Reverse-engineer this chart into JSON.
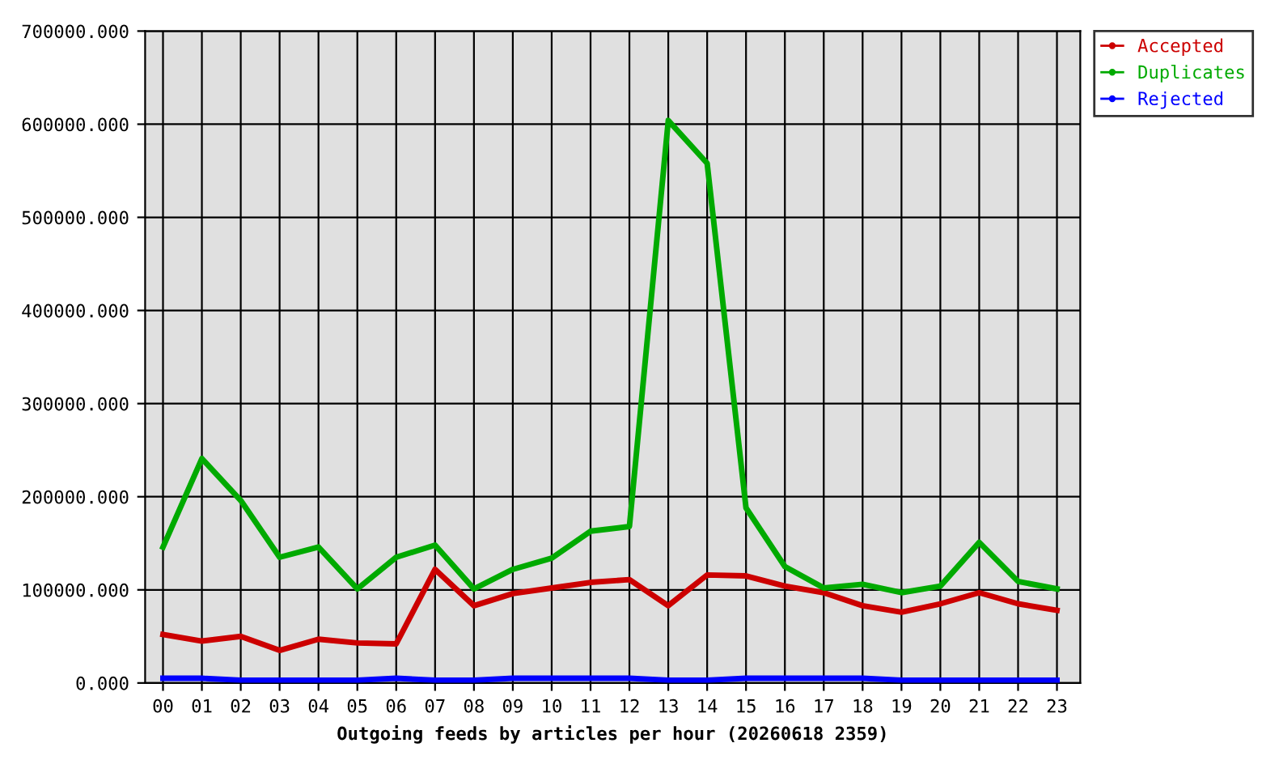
{
  "chart_data": {
    "type": "line",
    "xlabel": "Outgoing feeds by articles per hour (20260618 2359)",
    "categories": [
      "00",
      "01",
      "02",
      "03",
      "04",
      "05",
      "06",
      "07",
      "08",
      "09",
      "10",
      "11",
      "12",
      "13",
      "14",
      "15",
      "16",
      "17",
      "18",
      "19",
      "20",
      "21",
      "22",
      "23"
    ],
    "series": [
      {
        "name": "Accepted",
        "color": "#cc0000",
        "values": [
          52000,
          45000,
          50000,
          35000,
          47000,
          43000,
          42000,
          122000,
          83000,
          96000,
          102000,
          108000,
          111000,
          83000,
          116000,
          115000,
          104000,
          97000,
          83000,
          76000,
          85000,
          97000,
          85000,
          78000
        ]
      },
      {
        "name": "Duplicates",
        "color": "#00aa00",
        "values": [
          146000,
          241000,
          196000,
          135000,
          146000,
          101000,
          135000,
          148000,
          101000,
          122000,
          134000,
          163000,
          168000,
          604000,
          558000,
          188000,
          125000,
          102000,
          106000,
          97000,
          104000,
          151000,
          109000,
          101000
        ]
      },
      {
        "name": "Rejected",
        "color": "#0000ff",
        "values": [
          5000,
          5000,
          3000,
          3000,
          3000,
          3000,
          5000,
          3000,
          3000,
          5000,
          5000,
          5000,
          5000,
          3000,
          3000,
          5000,
          5000,
          5000,
          5000,
          3000,
          3000,
          3000,
          3000,
          3000
        ]
      }
    ],
    "ylim": [
      0,
      700000
    ],
    "yticks": [
      {
        "value": 0,
        "label": "0.000"
      },
      {
        "value": 100000,
        "label": "100000.000"
      },
      {
        "value": 200000,
        "label": "200000.000"
      },
      {
        "value": 300000,
        "label": "300000.000"
      },
      {
        "value": 400000,
        "label": "400000.000"
      },
      {
        "value": 500000,
        "label": "500000.000"
      },
      {
        "value": 600000,
        "label": "600000.000"
      },
      {
        "value": 700000,
        "label": "700000.000"
      }
    ],
    "grid": true,
    "legend": "top right",
    "marker": "none",
    "line_style": "solid"
  }
}
